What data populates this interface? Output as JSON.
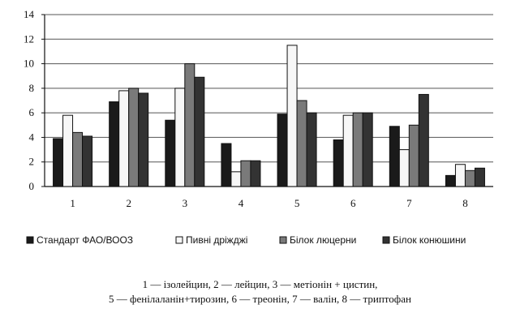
{
  "chart_data": {
    "type": "bar",
    "categories": [
      "1",
      "2",
      "3",
      "4",
      "5",
      "6",
      "7",
      "8"
    ],
    "series": [
      {
        "name": "Стандарт ФАО/ВООЗ",
        "values": [
          3.9,
          6.9,
          5.4,
          3.5,
          5.9,
          3.8,
          4.9,
          0.9
        ],
        "fill": "#1a1a1a"
      },
      {
        "name": "Пивні дріжджі",
        "values": [
          5.8,
          7.8,
          8.0,
          1.2,
          11.5,
          5.8,
          3.0,
          1.8
        ],
        "fill": "#f7f7f7"
      },
      {
        "name": "Білок люцерни",
        "values": [
          4.4,
          8.0,
          10.0,
          2.1,
          7.0,
          6.0,
          5.0,
          1.3
        ],
        "fill": "#7a7a7a"
      },
      {
        "name": "Білок конюшини",
        "values": [
          4.1,
          7.6,
          8.9,
          2.1,
          6.0,
          6.0,
          7.5,
          1.5
        ],
        "fill": "#333333"
      }
    ],
    "yticks": [
      "0",
      "2",
      "4",
      "6",
      "8",
      "10",
      "12",
      "14"
    ],
    "ylim": [
      0,
      14
    ],
    "grid": true,
    "legend_position": "bottom",
    "title": "",
    "xlabel": "",
    "ylabel": ""
  },
  "caption": {
    "line1": "1 — ізолейцин, 2 — лейцин, 3 — метіонін + цистин,",
    "line2": "5 — фенілаланін+тирозин, 6 — треонін, 7 — валін, 8 — триптофан"
  }
}
